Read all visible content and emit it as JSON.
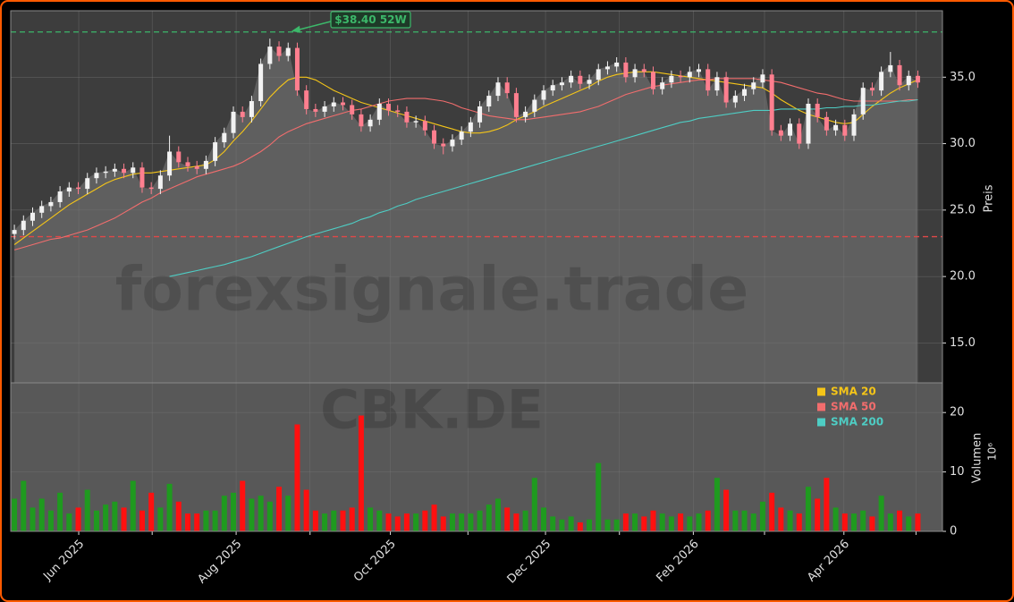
{
  "chart_data": {
    "type": "candlestick",
    "watermark": "forexsignale.trade",
    "symbol": "CBK.DE",
    "ylabel": "Preis",
    "volume_label": "Volumen",
    "volume_unit": "10⁶",
    "xlim": [
      -0.4,
      101.7
    ],
    "xticks": [
      {
        "value": 7.05,
        "label": "Jun 2025"
      },
      {
        "value": 24.3,
        "label": "Aug 2025"
      },
      {
        "value": 41.2,
        "label": "Oct 2025"
      },
      {
        "value": 58.2,
        "label": "Dec 2025"
      },
      {
        "value": 74.4,
        "label": "Feb 2026"
      },
      {
        "value": 90.9,
        "label": "Apr 2026"
      }
    ],
    "xminorticks": [
      15.1,
      32.4,
      49.7,
      66.3,
      82.2,
      98.8
    ],
    "ylim": [
      12,
      40
    ],
    "yticks": [
      {
        "value": 15,
        "label": "15.0"
      },
      {
        "value": 20,
        "label": "20.0"
      },
      {
        "value": 25,
        "label": "25.0"
      },
      {
        "value": 30,
        "label": "30.0"
      },
      {
        "value": 35,
        "label": "35.0"
      }
    ],
    "volume_ylim": [
      0,
      25
    ],
    "volume_yticks": [
      0,
      10,
      20
    ],
    "grid": true,
    "up_color": "#f2f2f2",
    "down_color": "#ff7f8f",
    "volume_up_color": "#1f9a1f",
    "volume_down_color": "#ff1010",
    "area_color": "#5f5f5f",
    "open": [
      23.2,
      23.5,
      24.2,
      24.8,
      25.3,
      25.6,
      26.4,
      26.7,
      26.6,
      27.4,
      27.8,
      27.9,
      28.1,
      27.8,
      28.2,
      26.7,
      26.6,
      27.6,
      29.4,
      28.6,
      28.3,
      28.1,
      28.7,
      30.1,
      30.8,
      32.4,
      32.0,
      33.2,
      36.0,
      37.3,
      36.6,
      37.2,
      34.0,
      32.6,
      32.4,
      32.8,
      33.1,
      32.9,
      32.2,
      31.3,
      31.8,
      33.0,
      32.5,
      32.4,
      31.6,
      31.7,
      31.0,
      30.0,
      29.8,
      30.3,
      30.9,
      31.6,
      32.8,
      33.6,
      34.6,
      33.8,
      32.0,
      32.4,
      33.3,
      34.0,
      34.4,
      34.6,
      35.1,
      34.5,
      34.8,
      35.6,
      35.8,
      36.1,
      35.0,
      35.6,
      35.4,
      34.1,
      34.6,
      35.1,
      35.0,
      35.4,
      35.6,
      34.0,
      35.0,
      33.1,
      33.6,
      34.1,
      34.6,
      35.2,
      31.0,
      30.6,
      31.5,
      30.0,
      33.0,
      32.0,
      31.0,
      31.4,
      30.6,
      32.2,
      34.2,
      34.0,
      35.4,
      35.9,
      34.4,
      35.1
    ],
    "high": [
      23.9,
      24.6,
      25.2,
      25.7,
      26.0,
      26.8,
      27.1,
      27.1,
      27.8,
      28.2,
      28.3,
      28.5,
      28.5,
      28.6,
      28.6,
      27.1,
      28.0,
      30.6,
      29.8,
      29.0,
      28.7,
      29.1,
      30.5,
      31.2,
      32.8,
      32.8,
      33.6,
      36.4,
      37.9,
      37.7,
      37.6,
      37.6,
      34.4,
      33.0,
      33.2,
      33.5,
      33.5,
      33.3,
      32.6,
      32.2,
      33.4,
      33.4,
      32.9,
      32.8,
      32.1,
      32.1,
      31.4,
      30.4,
      30.7,
      31.3,
      32.0,
      33.2,
      34.0,
      35.0,
      35.0,
      34.2,
      32.8,
      33.7,
      34.4,
      34.8,
      35.0,
      35.5,
      35.5,
      35.2,
      36.0,
      36.2,
      36.5,
      36.5,
      36.0,
      36.0,
      35.8,
      35.0,
      35.5,
      35.5,
      35.8,
      36.0,
      36.0,
      35.4,
      35.4,
      34.0,
      34.5,
      35.0,
      35.6,
      35.6,
      31.4,
      31.9,
      31.9,
      33.4,
      33.4,
      32.4,
      31.8,
      31.8,
      32.6,
      34.6,
      34.6,
      35.8,
      36.9,
      36.3,
      35.5,
      35.5
    ],
    "low": [
      22.8,
      23.1,
      23.8,
      24.4,
      24.9,
      25.2,
      26.0,
      26.2,
      26.2,
      27.0,
      27.4,
      27.5,
      27.4,
      27.4,
      26.3,
      26.2,
      26.2,
      27.2,
      28.2,
      27.9,
      27.7,
      27.7,
      28.3,
      29.7,
      30.4,
      31.6,
      31.6,
      32.8,
      35.6,
      36.2,
      36.2,
      33.6,
      32.2,
      32.0,
      32.0,
      32.4,
      32.5,
      31.8,
      30.9,
      30.9,
      31.4,
      32.1,
      32.0,
      31.2,
      31.2,
      30.6,
      29.6,
      29.2,
      29.4,
      29.9,
      30.5,
      31.2,
      32.4,
      33.2,
      33.4,
      31.6,
      31.6,
      32.0,
      32.9,
      33.6,
      34.0,
      34.2,
      34.1,
      34.1,
      34.4,
      35.2,
      35.4,
      34.6,
      34.6,
      35.0,
      33.7,
      33.7,
      34.2,
      34.6,
      34.6,
      35.0,
      33.6,
      33.6,
      32.7,
      32.7,
      33.2,
      33.7,
      34.2,
      30.6,
      30.2,
      30.2,
      29.6,
      29.6,
      31.6,
      30.6,
      30.6,
      30.2,
      30.2,
      31.8,
      33.6,
      33.6,
      35.0,
      34.0,
      34.0,
      34.2
    ],
    "close": [
      23.5,
      24.2,
      24.8,
      25.3,
      25.6,
      26.4,
      26.7,
      26.6,
      27.4,
      27.8,
      27.9,
      28.1,
      27.8,
      28.2,
      26.7,
      26.6,
      27.6,
      29.4,
      28.6,
      28.3,
      28.1,
      28.7,
      30.1,
      30.8,
      32.4,
      32.0,
      33.2,
      36.0,
      37.3,
      36.6,
      37.2,
      34.0,
      32.6,
      32.4,
      32.8,
      33.1,
      32.9,
      32.2,
      31.3,
      31.8,
      33.0,
      32.5,
      32.4,
      31.6,
      31.7,
      31.0,
      30.0,
      29.8,
      30.3,
      30.9,
      31.6,
      32.8,
      33.6,
      34.6,
      33.8,
      32.0,
      32.4,
      33.3,
      34.0,
      34.4,
      34.6,
      35.1,
      34.5,
      34.8,
      35.6,
      35.8,
      36.1,
      35.0,
      35.6,
      35.4,
      34.1,
      34.6,
      35.1,
      35.0,
      35.4,
      35.6,
      34.0,
      35.0,
      33.1,
      33.6,
      34.1,
      34.6,
      35.2,
      31.0,
      30.6,
      31.5,
      30.0,
      33.0,
      32.0,
      31.0,
      31.4,
      30.6,
      32.2,
      34.2,
      34.0,
      35.4,
      35.9,
      34.4,
      35.1,
      34.6
    ],
    "volume": [
      5.5,
      8.5,
      4,
      5.5,
      3.5,
      6.5,
      3,
      4,
      7,
      3.5,
      4.5,
      5,
      4,
      8.5,
      3.5,
      6.5,
      4,
      8,
      5,
      3,
      3,
      3.5,
      3.5,
      6,
      6.5,
      8.5,
      5.5,
      6,
      5,
      7.5,
      6,
      18,
      7,
      3.5,
      3,
      3.5,
      3.5,
      4,
      19.5,
      4,
      3.5,
      3,
      2.5,
      3,
      3,
      3.5,
      4.5,
      2.5,
      3,
      3,
      3,
      3.5,
      4.5,
      5.5,
      4,
      3,
      3.5,
      9,
      4,
      2.5,
      2,
      2.5,
      1.5,
      2,
      11.5,
      2,
      2,
      3,
      3,
      2.5,
      3.5,
      3,
      2.5,
      3,
      2.5,
      3,
      3.5,
      9,
      7,
      3.5,
      3.5,
      3,
      5,
      6.5,
      4,
      3.5,
      3,
      7.5,
      5.5,
      9,
      4,
      3,
      3,
      3.5,
      2.5,
      6,
      3,
      3.5,
      2.5,
      3
    ],
    "series": [
      {
        "name": "SMA 20",
        "color": "#f5c518",
        "values": [
          22.4,
          22.9,
          23.4,
          23.9,
          24.4,
          24.9,
          25.4,
          25.8,
          26.2,
          26.6,
          27.0,
          27.3,
          27.5,
          27.7,
          27.8,
          27.8,
          27.9,
          28.0,
          28.1,
          28.2,
          28.3,
          28.4,
          28.8,
          29.4,
          30.2,
          30.9,
          31.7,
          32.6,
          33.5,
          34.2,
          34.8,
          35.0,
          35.0,
          34.8,
          34.4,
          34.0,
          33.7,
          33.4,
          33.1,
          32.9,
          32.7,
          32.5,
          32.3,
          32.1,
          31.9,
          31.7,
          31.5,
          31.3,
          31.1,
          30.9,
          30.8,
          30.8,
          30.9,
          31.1,
          31.4,
          31.8,
          32.1,
          32.4,
          32.8,
          33.1,
          33.4,
          33.7,
          34.0,
          34.3,
          34.7,
          35.0,
          35.2,
          35.3,
          35.4,
          35.4,
          35.4,
          35.3,
          35.2,
          35.1,
          35.0,
          34.9,
          34.8,
          34.7,
          34.6,
          34.5,
          34.4,
          34.3,
          34.2,
          33.8,
          33.3,
          32.9,
          32.5,
          32.2,
          32.0,
          31.8,
          31.6,
          31.5,
          31.6,
          32.2,
          32.8,
          33.3,
          33.8,
          34.2,
          34.5,
          34.8
        ]
      },
      {
        "name": "SMA 50",
        "color": "#f26d6d",
        "values": [
          22.0,
          22.2,
          22.4,
          22.6,
          22.8,
          22.9,
          23.1,
          23.3,
          23.5,
          23.8,
          24.1,
          24.4,
          24.8,
          25.2,
          25.6,
          25.9,
          26.3,
          26.6,
          26.9,
          27.2,
          27.5,
          27.7,
          27.9,
          28.1,
          28.3,
          28.6,
          29.0,
          29.4,
          29.9,
          30.5,
          30.9,
          31.2,
          31.5,
          31.7,
          31.9,
          32.1,
          32.3,
          32.5,
          32.6,
          32.8,
          33.0,
          33.2,
          33.3,
          33.4,
          33.4,
          33.4,
          33.3,
          33.2,
          33.0,
          32.7,
          32.5,
          32.3,
          32.1,
          32.0,
          31.9,
          31.8,
          31.8,
          31.9,
          32.0,
          32.1,
          32.2,
          32.3,
          32.4,
          32.6,
          32.8,
          33.1,
          33.4,
          33.7,
          33.9,
          34.1,
          34.3,
          34.4,
          34.5,
          34.6,
          34.7,
          34.8,
          34.8,
          34.9,
          34.9,
          34.9,
          34.9,
          34.9,
          34.8,
          34.7,
          34.6,
          34.4,
          34.2,
          34.0,
          33.8,
          33.7,
          33.5,
          33.3,
          33.2,
          33.2,
          33.2,
          33.2,
          33.2,
          33.2,
          33.3,
          33.3
        ]
      },
      {
        "name": "SMA 200",
        "color": "#4ecdc4",
        "values": [
          null,
          null,
          null,
          null,
          null,
          null,
          null,
          null,
          null,
          null,
          null,
          null,
          null,
          null,
          null,
          null,
          null,
          20.0,
          20.15,
          20.3,
          20.45,
          20.6,
          20.75,
          20.9,
          21.1,
          21.3,
          21.5,
          21.75,
          22.0,
          22.25,
          22.5,
          22.75,
          23.0,
          23.2,
          23.4,
          23.6,
          23.8,
          24.0,
          24.3,
          24.5,
          24.8,
          25.0,
          25.3,
          25.5,
          25.8,
          26.0,
          26.2,
          26.4,
          26.6,
          26.8,
          27.0,
          27.2,
          27.4,
          27.6,
          27.8,
          28.0,
          28.2,
          28.4,
          28.6,
          28.8,
          29.0,
          29.2,
          29.4,
          29.6,
          29.8,
          30.0,
          30.2,
          30.4,
          30.6,
          30.8,
          31.0,
          31.2,
          31.4,
          31.6,
          31.7,
          31.9,
          32.0,
          32.1,
          32.2,
          32.3,
          32.4,
          32.5,
          32.5,
          32.5,
          32.6,
          32.6,
          32.6,
          32.6,
          32.6,
          32.7,
          32.7,
          32.8,
          32.8,
          32.9,
          32.9,
          33.0,
          33.1,
          33.2,
          33.2,
          33.3
        ]
      }
    ],
    "legend": "upper right",
    "high_line": {
      "value": 38.4,
      "label": "$38.40 52W",
      "color": "#3cb86a"
    },
    "low_line": {
      "value": 23,
      "color": "#e04848"
    }
  }
}
